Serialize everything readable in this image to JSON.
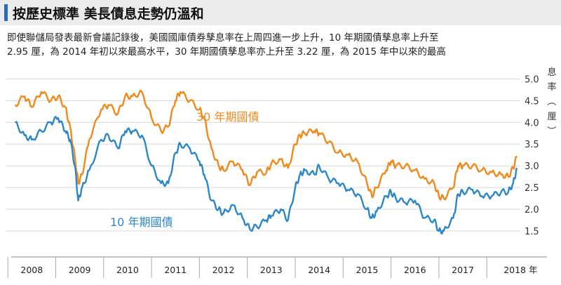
{
  "header": {
    "title": "按歷史標準 美長債息走勢仍溫和",
    "subtitle_line1": "即使聯儲局發表最新會議記錄後，美國國庫債券孳息率在上周四進一步上升，10 年期國債孳息率上升至",
    "subtitle_line2": "2.95 厘，為 2014 年初以來最高水平，30 年期國債孳息率亦上升至 3.22 厘，為 2015 年中以來的最高"
  },
  "chart_data": {
    "type": "line",
    "y_unit_label": "息率（厘）",
    "yticks": [
      "5.0",
      "4.5",
      "4.0",
      "3.5",
      "3.0",
      "2.5",
      "2.0",
      "1.5"
    ],
    "ylim": [
      1.0,
      5.2
    ],
    "xlim": [
      2007.6,
      2018.2
    ],
    "grid": true,
    "xtick_labels": [
      "2008",
      "2009",
      "2010",
      "2011",
      "2012",
      "2013",
      "2014",
      "2015",
      "2016",
      "2017",
      "2018 年"
    ],
    "series_colors": [
      "#f08a1d",
      "#2b87c8"
    ],
    "series": [
      {
        "name": "30 年期國債",
        "x": [
          2007.65,
          2007.85,
          2008.0,
          2008.2,
          2008.4,
          2008.55,
          2008.7,
          2008.8,
          2008.9,
          2008.97,
          2009.05,
          2009.2,
          2009.45,
          2009.6,
          2009.8,
          2009.95,
          2010.1,
          2010.3,
          2010.5,
          2010.7,
          2010.85,
          2011.0,
          2011.1,
          2011.3,
          2011.5,
          2011.6,
          2011.75,
          2011.9,
          2012.0,
          2012.2,
          2012.4,
          2012.55,
          2012.7,
          2012.9,
          2013.0,
          2013.2,
          2013.35,
          2013.5,
          2013.6,
          2013.7,
          2013.9,
          2014.0,
          2014.2,
          2014.4,
          2014.6,
          2014.8,
          2015.0,
          2015.1,
          2015.2,
          2015.4,
          2015.5,
          2015.6,
          2015.8,
          2016.0,
          2016.2,
          2016.4,
          2016.5,
          2016.6,
          2016.8,
          2016.9,
          2017.0,
          2017.2,
          2017.4,
          2017.6,
          2017.8,
          2017.95,
          2018.05,
          2018.13
        ],
        "values": [
          4.4,
          4.6,
          4.35,
          4.7,
          4.5,
          4.6,
          4.35,
          3.9,
          3.2,
          2.6,
          2.8,
          3.6,
          4.3,
          4.4,
          4.2,
          4.6,
          4.6,
          4.7,
          4.1,
          3.8,
          3.9,
          4.5,
          4.7,
          4.5,
          4.3,
          4.1,
          3.4,
          3.0,
          2.9,
          3.1,
          2.9,
          2.55,
          2.85,
          2.85,
          3.05,
          3.15,
          2.95,
          3.5,
          3.7,
          3.75,
          3.8,
          3.75,
          3.55,
          3.3,
          3.25,
          3.1,
          2.6,
          2.3,
          2.5,
          2.9,
          3.1,
          3.0,
          3.0,
          2.9,
          2.7,
          2.6,
          2.3,
          2.25,
          2.5,
          3.0,
          3.0,
          3.0,
          2.9,
          2.85,
          2.8,
          2.75,
          2.95,
          3.22
        ]
      },
      {
        "name": "10 年期國債",
        "x": [
          2007.65,
          2007.85,
          2008.0,
          2008.2,
          2008.4,
          2008.55,
          2008.7,
          2008.8,
          2008.9,
          2008.97,
          2009.05,
          2009.2,
          2009.45,
          2009.6,
          2009.8,
          2009.95,
          2010.1,
          2010.3,
          2010.5,
          2010.7,
          2010.85,
          2011.0,
          2011.1,
          2011.3,
          2011.5,
          2011.6,
          2011.75,
          2011.9,
          2012.0,
          2012.2,
          2012.4,
          2012.55,
          2012.7,
          2012.9,
          2013.0,
          2013.2,
          2013.35,
          2013.5,
          2013.6,
          2013.7,
          2013.9,
          2014.0,
          2014.2,
          2014.4,
          2014.6,
          2014.8,
          2015.0,
          2015.1,
          2015.2,
          2015.4,
          2015.5,
          2015.6,
          2015.8,
          2016.0,
          2016.2,
          2016.4,
          2016.5,
          2016.6,
          2016.8,
          2016.9,
          2017.0,
          2017.2,
          2017.4,
          2017.6,
          2017.8,
          2017.95,
          2018.05,
          2018.13
        ],
        "values": [
          4.0,
          3.7,
          3.6,
          3.8,
          4.0,
          4.1,
          3.8,
          3.6,
          3.0,
          2.2,
          2.5,
          2.9,
          3.6,
          3.7,
          3.4,
          3.8,
          3.8,
          3.7,
          3.0,
          2.6,
          2.6,
          3.3,
          3.5,
          3.4,
          3.1,
          2.8,
          2.2,
          2.0,
          1.9,
          2.1,
          1.8,
          1.55,
          1.6,
          1.75,
          1.85,
          2.0,
          1.75,
          2.5,
          2.8,
          2.9,
          2.8,
          3.0,
          2.7,
          2.6,
          2.45,
          2.35,
          2.0,
          1.8,
          1.95,
          2.3,
          2.4,
          2.25,
          2.15,
          2.2,
          1.8,
          1.75,
          1.5,
          1.5,
          1.8,
          2.35,
          2.4,
          2.45,
          2.3,
          2.3,
          2.4,
          2.4,
          2.6,
          2.95
        ]
      }
    ]
  }
}
